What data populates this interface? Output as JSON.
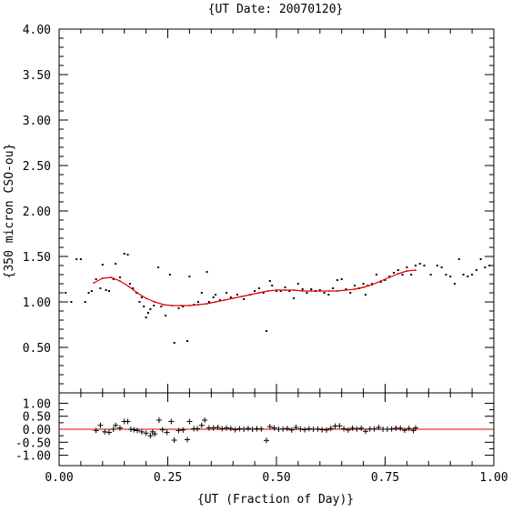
{
  "chart_data": [
    {
      "type": "scatter",
      "title": "{UT Date: 20070120}",
      "xlabel": "",
      "ylabel": "{350 micron CSO-ou}",
      "xlim": [
        0.0,
        1.0
      ],
      "ylim": [
        0.0,
        4.0
      ],
      "y_ticks": [
        "4.00",
        "3.50",
        "3.00",
        "2.50",
        "2.00",
        "1.50",
        "1.00",
        "0.50"
      ],
      "series": [
        {
          "marker": "dot",
          "color": "#000000",
          "points": [
            [
              0.015,
              1.1
            ],
            [
              0.028,
              1.0
            ],
            [
              0.04,
              1.47
            ],
            [
              0.05,
              1.47
            ],
            [
              0.06,
              1.0
            ],
            [
              0.068,
              1.1
            ],
            [
              0.075,
              1.12
            ],
            [
              0.085,
              1.25
            ],
            [
              0.095,
              1.15
            ],
            [
              0.1,
              1.41
            ],
            [
              0.108,
              1.13
            ],
            [
              0.115,
              1.12
            ],
            [
              0.125,
              1.25
            ],
            [
              0.13,
              1.42
            ],
            [
              0.14,
              1.27
            ],
            [
              0.15,
              1.53
            ],
            [
              0.158,
              1.52
            ],
            [
              0.163,
              1.2
            ],
            [
              0.17,
              1.15
            ],
            [
              0.178,
              1.1
            ],
            [
              0.185,
              1.0
            ],
            [
              0.19,
              1.05
            ],
            [
              0.195,
              0.95
            ],
            [
              0.2,
              0.83
            ],
            [
              0.205,
              0.88
            ],
            [
              0.21,
              0.92
            ],
            [
              0.218,
              0.96
            ],
            [
              0.228,
              1.38
            ],
            [
              0.235,
              0.95
            ],
            [
              0.245,
              0.85
            ],
            [
              0.255,
              1.3
            ],
            [
              0.265,
              0.55
            ],
            [
              0.275,
              0.93
            ],
            [
              0.285,
              0.95
            ],
            [
              0.295,
              0.57
            ],
            [
              0.3,
              1.28
            ],
            [
              0.31,
              0.97
            ],
            [
              0.32,
              1.0
            ],
            [
              0.328,
              1.1
            ],
            [
              0.34,
              1.33
            ],
            [
              0.345,
              1.0
            ],
            [
              0.355,
              1.05
            ],
            [
              0.36,
              1.08
            ],
            [
              0.37,
              1.02
            ],
            [
              0.385,
              1.1
            ],
            [
              0.395,
              1.05
            ],
            [
              0.41,
              1.08
            ],
            [
              0.425,
              1.03
            ],
            [
              0.44,
              1.08
            ],
            [
              0.45,
              1.12
            ],
            [
              0.46,
              1.15
            ],
            [
              0.47,
              1.1
            ],
            [
              0.477,
              0.68
            ],
            [
              0.485,
              1.23
            ],
            [
              0.49,
              1.18
            ],
            [
              0.5,
              1.12
            ],
            [
              0.51,
              1.12
            ],
            [
              0.52,
              1.16
            ],
            [
              0.53,
              1.12
            ],
            [
              0.54,
              1.04
            ],
            [
              0.55,
              1.2
            ],
            [
              0.56,
              1.14
            ],
            [
              0.57,
              1.1
            ],
            [
              0.58,
              1.14
            ],
            [
              0.59,
              1.12
            ],
            [
              0.6,
              1.13
            ],
            [
              0.61,
              1.1
            ],
            [
              0.62,
              1.08
            ],
            [
              0.63,
              1.15
            ],
            [
              0.64,
              1.24
            ],
            [
              0.65,
              1.25
            ],
            [
              0.66,
              1.14
            ],
            [
              0.67,
              1.1
            ],
            [
              0.68,
              1.18
            ],
            [
              0.69,
              1.15
            ],
            [
              0.7,
              1.2
            ],
            [
              0.705,
              1.08
            ],
            [
              0.71,
              1.18
            ],
            [
              0.72,
              1.2
            ],
            [
              0.73,
              1.3
            ],
            [
              0.74,
              1.22
            ],
            [
              0.75,
              1.24
            ],
            [
              0.76,
              1.28
            ],
            [
              0.77,
              1.32
            ],
            [
              0.78,
              1.35
            ],
            [
              0.79,
              1.3
            ],
            [
              0.8,
              1.38
            ],
            [
              0.81,
              1.3
            ],
            [
              0.82,
              1.4
            ],
            [
              0.83,
              1.42
            ],
            [
              0.84,
              1.4
            ],
            [
              0.855,
              1.3
            ],
            [
              0.87,
              1.4
            ],
            [
              0.88,
              1.38
            ],
            [
              0.89,
              1.3
            ],
            [
              0.9,
              1.28
            ],
            [
              0.91,
              1.2
            ],
            [
              0.92,
              1.47
            ],
            [
              0.93,
              1.3
            ],
            [
              0.94,
              1.28
            ],
            [
              0.95,
              1.3
            ],
            [
              0.96,
              1.35
            ],
            [
              0.97,
              1.47
            ],
            [
              0.98,
              1.38
            ],
            [
              0.99,
              1.4
            ]
          ]
        },
        {
          "marker": "line",
          "color": "#e00000",
          "points": [
            [
              0.08,
              1.21
            ],
            [
              0.1,
              1.26
            ],
            [
              0.12,
              1.27
            ],
            [
              0.14,
              1.23
            ],
            [
              0.16,
              1.17
            ],
            [
              0.18,
              1.1
            ],
            [
              0.2,
              1.04
            ],
            [
              0.22,
              1.0
            ],
            [
              0.24,
              0.97
            ],
            [
              0.26,
              0.96
            ],
            [
              0.28,
              0.96
            ],
            [
              0.3,
              0.96
            ],
            [
              0.32,
              0.97
            ],
            [
              0.34,
              0.98
            ],
            [
              0.36,
              1.0
            ],
            [
              0.38,
              1.02
            ],
            [
              0.4,
              1.04
            ],
            [
              0.42,
              1.06
            ],
            [
              0.44,
              1.08
            ],
            [
              0.46,
              1.1
            ],
            [
              0.48,
              1.12
            ],
            [
              0.5,
              1.13
            ],
            [
              0.52,
              1.13
            ],
            [
              0.54,
              1.13
            ],
            [
              0.56,
              1.12
            ],
            [
              0.58,
              1.12
            ],
            [
              0.6,
              1.12
            ],
            [
              0.62,
              1.12
            ],
            [
              0.64,
              1.12
            ],
            [
              0.66,
              1.13
            ],
            [
              0.68,
              1.14
            ],
            [
              0.7,
              1.16
            ],
            [
              0.72,
              1.19
            ],
            [
              0.74,
              1.23
            ],
            [
              0.76,
              1.27
            ],
            [
              0.78,
              1.31
            ],
            [
              0.8,
              1.34
            ],
            [
              0.82,
              1.35
            ]
          ]
        }
      ]
    },
    {
      "type": "scatter",
      "xlabel": "{UT (Fraction of Day)}",
      "ylabel": "",
      "xlim": [
        0.0,
        1.0
      ],
      "ylim": [
        -1.4,
        1.4
      ],
      "x_ticks": [
        "0.00",
        "0.25",
        "0.50",
        "0.75",
        "1.00"
      ],
      "y_ticks": [
        "1.00",
        "0.50",
        "0.00",
        "-0.50",
        "-1.00"
      ],
      "reference_line": {
        "y": 0.0,
        "color": "#e00000"
      },
      "series": [
        {
          "marker": "plus",
          "color": "#000000",
          "points": [
            [
              0.085,
              -0.05
            ],
            [
              0.095,
              0.15
            ],
            [
              0.105,
              -0.1
            ],
            [
              0.115,
              -0.12
            ],
            [
              0.125,
              0.0
            ],
            [
              0.13,
              0.15
            ],
            [
              0.14,
              0.05
            ],
            [
              0.15,
              0.3
            ],
            [
              0.158,
              0.3
            ],
            [
              0.165,
              0.0
            ],
            [
              0.172,
              -0.02
            ],
            [
              0.18,
              -0.05
            ],
            [
              0.19,
              -0.1
            ],
            [
              0.2,
              -0.15
            ],
            [
              0.21,
              -0.25
            ],
            [
              0.215,
              -0.1
            ],
            [
              0.22,
              -0.18
            ],
            [
              0.23,
              0.35
            ],
            [
              0.238,
              -0.02
            ],
            [
              0.248,
              -0.12
            ],
            [
              0.258,
              0.3
            ],
            [
              0.265,
              -0.42
            ],
            [
              0.275,
              -0.05
            ],
            [
              0.285,
              -0.03
            ],
            [
              0.295,
              -0.4
            ],
            [
              0.3,
              0.3
            ],
            [
              0.31,
              0.02
            ],
            [
              0.318,
              0.02
            ],
            [
              0.328,
              0.15
            ],
            [
              0.335,
              0.35
            ],
            [
              0.345,
              0.05
            ],
            [
              0.355,
              0.05
            ],
            [
              0.365,
              0.07
            ],
            [
              0.375,
              0.02
            ],
            [
              0.385,
              0.05
            ],
            [
              0.395,
              0.03
            ],
            [
              0.405,
              -0.02
            ],
            [
              0.415,
              0.02
            ],
            [
              0.425,
              0.0
            ],
            [
              0.435,
              0.03
            ],
            [
              0.445,
              0.0
            ],
            [
              0.455,
              0.02
            ],
            [
              0.465,
              0.01
            ],
            [
              0.477,
              -0.43
            ],
            [
              0.485,
              0.1
            ],
            [
              0.495,
              0.05
            ],
            [
              0.505,
              0.0
            ],
            [
              0.515,
              0.01
            ],
            [
              0.525,
              0.03
            ],
            [
              0.535,
              -0.03
            ],
            [
              0.545,
              0.07
            ],
            [
              0.555,
              0.01
            ],
            [
              0.565,
              -0.02
            ],
            [
              0.575,
              0.02
            ],
            [
              0.585,
              0.0
            ],
            [
              0.595,
              0.01
            ],
            [
              0.605,
              -0.02
            ],
            [
              0.615,
              -0.03
            ],
            [
              0.625,
              0.03
            ],
            [
              0.635,
              0.12
            ],
            [
              0.645,
              0.13
            ],
            [
              0.655,
              0.02
            ],
            [
              0.665,
              -0.03
            ],
            [
              0.675,
              0.04
            ],
            [
              0.685,
              0.01
            ],
            [
              0.695,
              0.04
            ],
            [
              0.705,
              -0.08
            ],
            [
              0.715,
              0.01
            ],
            [
              0.725,
              0.01
            ],
            [
              0.735,
              0.07
            ],
            [
              0.745,
              0.0
            ],
            [
              0.755,
              0.0
            ],
            [
              0.765,
              0.01
            ],
            [
              0.775,
              0.04
            ],
            [
              0.785,
              0.04
            ],
            [
              0.795,
              -0.04
            ],
            [
              0.805,
              0.03
            ],
            [
              0.815,
              -0.05
            ],
            [
              0.82,
              0.05
            ]
          ]
        }
      ]
    }
  ]
}
